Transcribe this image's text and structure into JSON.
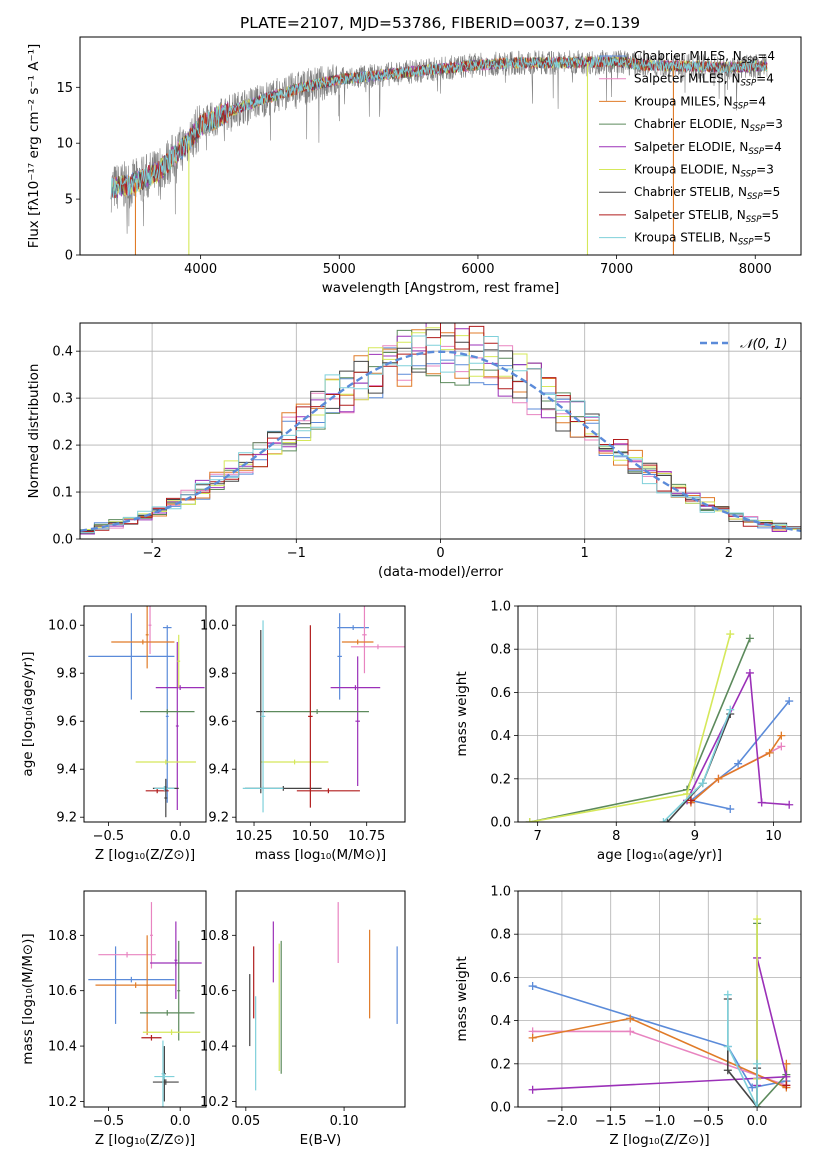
{
  "figure_title": "PLATE=2107, MJD=53786, FIBERID=0037, z=0.139",
  "colors": {
    "Chabrier MILES": "#5b8bd9",
    "Salpeter MILES": "#e884c0",
    "Kroupa MILES": "#e07b28",
    "Chabrier ELODIE": "#5c8a5c",
    "Salpeter ELODIE": "#9b30b8",
    "Kroupa ELODIE": "#d5e85a",
    "Chabrier STELIB": "#444444",
    "Salpeter STELIB": "#b01c1c",
    "Kroupa STELIB": "#7fd0da",
    "data": "#808080",
    "normal": "#5b8bd9"
  },
  "chart_data": [
    {
      "id": "spectrum",
      "type": "line",
      "xlabel": "wavelength [Angstrom, rest frame]",
      "ylabel": "Flux [fλ10⁻¹⁷ erg cm⁻² s⁻¹ A⁻¹]",
      "xlim": [
        3130,
        8330
      ],
      "ylim": [
        0,
        19.5
      ],
      "xticks": [
        4000,
        5000,
        6000,
        7000,
        8000
      ],
      "yticks": [
        0,
        5,
        10,
        15
      ],
      "x_range": [
        3355,
        8085
      ],
      "continuum_anchors": {
        "x": [
          3355,
          3500,
          3700,
          3900,
          4000,
          4200,
          4400,
          4700,
          5000,
          5300,
          5600,
          6000,
          6300,
          6600,
          7000,
          7200,
          7500,
          7800,
          8085
        ],
        "y": [
          6.0,
          6.3,
          7.5,
          10.0,
          11.6,
          12.8,
          13.7,
          14.9,
          15.7,
          16.1,
          16.5,
          17.0,
          17.2,
          17.2,
          17.3,
          17.0,
          16.9,
          16.8,
          16.9
        ]
      },
      "vertical_drops": [
        {
          "x": 3530,
          "series": "Kroupa MILES"
        },
        {
          "x": 3915,
          "series": "Kroupa ELODIE"
        },
        {
          "x": 6790,
          "series": "Kroupa ELODIE"
        },
        {
          "x": 7410,
          "series": "Kroupa MILES"
        }
      ],
      "legend": [
        {
          "name": "Chabrier MILES",
          "nssp": "4"
        },
        {
          "name": "Salpeter MILES",
          "nssp": "4"
        },
        {
          "name": "Kroupa MILES",
          "nssp": "4"
        },
        {
          "name": "Chabrier ELODIE",
          "nssp": "3"
        },
        {
          "name": "Salpeter ELODIE",
          "nssp": "4"
        },
        {
          "name": "Kroupa ELODIE",
          "nssp": "3"
        },
        {
          "name": "Chabrier STELIB",
          "nssp": "5"
        },
        {
          "name": "Salpeter STELIB",
          "nssp": "5"
        },
        {
          "name": "Kroupa STELIB",
          "nssp": "5"
        }
      ],
      "legend_position": "top-right"
    },
    {
      "id": "residuals",
      "type": "histogram",
      "xlabel": "(data-model)/error",
      "ylabel": "Normed distribution",
      "xlim": [
        -2.5,
        2.5
      ],
      "ylim": [
        0,
        0.46
      ],
      "xticks": [
        -2,
        -1,
        0,
        1,
        2
      ],
      "yticks": [
        0.0,
        0.1,
        0.2,
        0.3,
        0.4
      ],
      "bins": 50,
      "normal_curve": {
        "label": "𝒩(0, 1)",
        "mean": 0,
        "sigma": 1
      },
      "grid": true,
      "legend_position": "top-right"
    },
    {
      "id": "age_vs_Z",
      "type": "errorbar",
      "xlabel": "Z [log₁₀(Z/Z⊙)]",
      "ylabel": "age  [log₁₀(age/yr)]",
      "xlim": [
        -0.67,
        0.18
      ],
      "ylim": [
        9.18,
        10.08
      ],
      "xticks": [
        -0.5,
        0.0
      ],
      "yticks": [
        9.2,
        9.4,
        9.6,
        9.8,
        10.0
      ],
      "points": [
        {
          "series": "Chabrier MILES",
          "x": -0.34,
          "xerr": 0.3,
          "y": 9.87,
          "yerr": 0.18
        },
        {
          "series": "Chabrier MILES",
          "x": -0.09,
          "xerr": 0.03,
          "y": 9.99,
          "yerr": 0.01
        },
        {
          "series": "Chabrier MILES",
          "x": -0.09,
          "xerr": 0.01,
          "y": 9.62,
          "yerr": 0.36
        },
        {
          "series": "Salpeter MILES",
          "x": -0.21,
          "xerr": 0.01,
          "y": 10.0,
          "yerr": 0.12
        },
        {
          "series": "Kroupa MILES",
          "x": -0.23,
          "xerr": 0.01,
          "y": 9.96,
          "yerr": 0.14
        },
        {
          "series": "Kroupa MILES",
          "x": -0.26,
          "xerr": 0.22,
          "y": 9.93,
          "yerr": 0.01
        },
        {
          "series": "Salpeter ELODIE",
          "x": 0.0,
          "xerr": 0.17,
          "y": 9.74,
          "yerr": 0.01
        },
        {
          "series": "Salpeter ELODIE",
          "x": -0.02,
          "xerr": 0.01,
          "y": 9.58,
          "yerr": 0.35
        },
        {
          "series": "Chabrier ELODIE",
          "x": -0.09,
          "xerr": 0.19,
          "y": 9.64,
          "yerr": 0.01
        },
        {
          "series": "Kroupa ELODIE",
          "x": -0.1,
          "xerr": 0.21,
          "y": 9.43,
          "yerr": 0.01
        },
        {
          "series": "Kroupa ELODIE",
          "x": -0.01,
          "xerr": 0.01,
          "y": 9.85,
          "yerr": 0.11
        },
        {
          "series": "Chabrier STELIB",
          "x": -0.1,
          "xerr": 0.09,
          "y": 9.32,
          "yerr": 0.01
        },
        {
          "series": "Salpeter STELIB",
          "x": -0.16,
          "xerr": 0.08,
          "y": 9.31,
          "yerr": 0.01
        },
        {
          "series": "Kroupa STELIB",
          "x": -0.11,
          "xerr": 0.07,
          "y": 9.32,
          "yerr": 0.01
        },
        {
          "series": "Chabrier STELIB",
          "x": -0.1,
          "xerr": 0.01,
          "y": 9.28,
          "yerr": 0.08
        }
      ]
    },
    {
      "id": "age_vs_mass",
      "type": "errorbar",
      "xlabel": "mass [log₁₀(M/M⊙)]",
      "ylabel": "",
      "xlim": [
        10.17,
        10.92
      ],
      "ylim": [
        9.18,
        10.08
      ],
      "xticks": [
        10.25,
        10.5,
        10.75
      ],
      "yticks": [
        9.2,
        9.4,
        9.6,
        9.8,
        10.0
      ],
      "points": [
        {
          "series": "Chabrier MILES",
          "x": 10.69,
          "xerr": 0.07,
          "y": 9.99,
          "yerr": 0.01
        },
        {
          "series": "Chabrier MILES",
          "x": 10.63,
          "xerr": 0.01,
          "y": 9.87,
          "yerr": 0.18
        },
        {
          "series": "Salpeter MILES",
          "x": 10.8,
          "xerr": 0.12,
          "y": 9.91,
          "yerr": 0.01
        },
        {
          "series": "Salpeter MILES",
          "x": 10.74,
          "xerr": 0.01,
          "y": 9.96,
          "yerr": 0.16
        },
        {
          "series": "Kroupa MILES",
          "x": 10.71,
          "xerr": 0.07,
          "y": 9.93,
          "yerr": 0.01
        },
        {
          "series": "Salpeter ELODIE",
          "x": 10.7,
          "xerr": 0.11,
          "y": 9.74,
          "yerr": 0.01
        },
        {
          "series": "Salpeter ELODIE",
          "x": 10.71,
          "xerr": 0.01,
          "y": 9.6,
          "yerr": 0.27
        },
        {
          "series": "Chabrier ELODIE",
          "x": 10.53,
          "xerr": 0.23,
          "y": 9.64,
          "yerr": 0.01
        },
        {
          "series": "Kroupa ELODIE",
          "x": 10.43,
          "xerr": 0.15,
          "y": 9.43,
          "yerr": 0.01
        },
        {
          "series": "Chabrier STELIB",
          "x": 10.28,
          "xerr": 0.02,
          "y": 9.64,
          "yerr": 0.34
        },
        {
          "series": "Chabrier STELIB",
          "x": 10.38,
          "xerr": 0.17,
          "y": 9.32,
          "yerr": 0.01
        },
        {
          "series": "Salpeter STELIB",
          "x": 10.5,
          "xerr": 0.01,
          "y": 9.62,
          "yerr": 0.38
        },
        {
          "series": "Salpeter STELIB",
          "x": 10.58,
          "xerr": 0.14,
          "y": 9.31,
          "yerr": 0.01
        },
        {
          "series": "Kroupa STELIB",
          "x": 10.29,
          "xerr": 0.01,
          "y": 9.62,
          "yerr": 0.4
        },
        {
          "series": "Kroupa STELIB",
          "x": 10.29,
          "xerr": 0.09,
          "y": 9.32,
          "yerr": 0.01
        }
      ]
    },
    {
      "id": "massweight_vs_age",
      "type": "line",
      "xlabel": "age  [log₁₀(age/yr)]",
      "ylabel": "mass weight",
      "xlim": [
        6.75,
        10.35
      ],
      "ylim": [
        0,
        1.0
      ],
      "xticks": [
        7,
        8,
        9,
        10
      ],
      "yticks": [
        0.0,
        0.2,
        0.4,
        0.6,
        0.8,
        1.0
      ],
      "grid": true,
      "series": [
        {
          "name": "Chabrier MILES",
          "x": [
            9.45,
            8.95,
            9.55,
            10.2
          ],
          "y": [
            0.06,
            0.1,
            0.27,
            0.56
          ]
        },
        {
          "name": "Salpeter MILES",
          "x": [
            8.95,
            9.3,
            10.1
          ],
          "y": [
            0.09,
            0.2,
            0.35
          ]
        },
        {
          "name": "Kroupa MILES",
          "x": [
            8.95,
            9.3,
            9.95,
            10.1
          ],
          "y": [
            0.09,
            0.2,
            0.32,
            0.4
          ]
        },
        {
          "name": "Chabrier ELODIE",
          "x": [
            6.9,
            8.9,
            9.7
          ],
          "y": [
            0.0,
            0.15,
            0.85
          ]
        },
        {
          "name": "Salpeter ELODIE",
          "x": [
            8.9,
            9.7,
            9.85,
            10.2
          ],
          "y": [
            0.1,
            0.69,
            0.09,
            0.08
          ]
        },
        {
          "name": "Kroupa ELODIE",
          "x": [
            6.9,
            8.9,
            9.45
          ],
          "y": [
            0.0,
            0.13,
            0.87
          ]
        },
        {
          "name": "Chabrier STELIB",
          "x": [
            8.65,
            9.1,
            9.45
          ],
          "y": [
            0.0,
            0.18,
            0.5
          ]
        },
        {
          "name": "Salpeter STELIB",
          "x": [
            8.95
          ],
          "y": [
            0.1
          ]
        },
        {
          "name": "Kroupa STELIB",
          "x": [
            8.6,
            9.1,
            9.45
          ],
          "y": [
            0.0,
            0.18,
            0.52
          ]
        }
      ]
    },
    {
      "id": "mass_vs_Z",
      "type": "errorbar",
      "xlabel": "Z [log₁₀(Z/Z⊙)]",
      "ylabel": "mass [log₁₀(M/M⊙)]",
      "xlim": [
        -0.67,
        0.18
      ],
      "ylim": [
        10.18,
        10.96
      ],
      "xticks": [
        -0.5,
        0.0
      ],
      "yticks": [
        10.2,
        10.4,
        10.6,
        10.8
      ],
      "points": [
        {
          "series": "Chabrier MILES",
          "x": -0.34,
          "xerr": 0.3,
          "y": 10.64,
          "yerr": 0.01
        },
        {
          "series": "Chabrier MILES",
          "x": -0.45,
          "xerr": 0.01,
          "y": 10.62,
          "yerr": 0.14
        },
        {
          "series": "Salpeter MILES",
          "x": -0.37,
          "xerr": 0.2,
          "y": 10.73,
          "yerr": 0.01
        },
        {
          "series": "Salpeter MILES",
          "x": -0.2,
          "xerr": 0.01,
          "y": 10.8,
          "yerr": 0.12
        },
        {
          "series": "Kroupa MILES",
          "x": -0.31,
          "xerr": 0.28,
          "y": 10.62,
          "yerr": 0.01
        },
        {
          "series": "Kroupa MILES",
          "x": -0.23,
          "xerr": 0.01,
          "y": 10.62,
          "yerr": 0.18
        },
        {
          "series": "Salpeter ELODIE",
          "x": -0.03,
          "xerr": 0.18,
          "y": 10.7,
          "yerr": 0.01
        },
        {
          "series": "Salpeter ELODIE",
          "x": -0.03,
          "xerr": 0.01,
          "y": 10.71,
          "yerr": 0.14
        },
        {
          "series": "Chabrier ELODIE",
          "x": -0.09,
          "xerr": 0.19,
          "y": 10.52,
          "yerr": 0.01
        },
        {
          "series": "Chabrier ELODIE",
          "x": -0.01,
          "xerr": 0.01,
          "y": 10.6,
          "yerr": 0.18
        },
        {
          "series": "Kroupa ELODIE",
          "x": -0.06,
          "xerr": 0.2,
          "y": 10.45,
          "yerr": 0.01
        },
        {
          "series": "Chabrier STELIB",
          "x": -0.1,
          "xerr": 0.09,
          "y": 10.27,
          "yerr": 0.01
        },
        {
          "series": "Chabrier STELIB",
          "x": -0.11,
          "xerr": 0.01,
          "y": 10.3,
          "yerr": 0.1
        },
        {
          "series": "Salpeter STELIB",
          "x": -0.2,
          "xerr": 0.07,
          "y": 10.43,
          "yerr": 0.01
        },
        {
          "series": "Kroupa STELIB",
          "x": -0.11,
          "xerr": 0.07,
          "y": 10.29,
          "yerr": 0.01
        },
        {
          "series": "Kroupa STELIB",
          "x": -0.12,
          "xerr": 0.01,
          "y": 10.3,
          "yerr": 0.12
        }
      ]
    },
    {
      "id": "mass_vs_ebv",
      "type": "errorbar",
      "xlabel": "E(B-V)",
      "ylabel": "",
      "xlim": [
        0.045,
        0.131
      ],
      "ylim": [
        10.18,
        10.96
      ],
      "xticks": [
        0.05,
        0.1
      ],
      "yticks": [
        10.2,
        10.4,
        10.6,
        10.8
      ],
      "points": [
        {
          "series": "Chabrier STELIB",
          "x": 0.052,
          "y": 10.53,
          "yerr": 0.13
        },
        {
          "series": "Salpeter STELIB",
          "x": 0.054,
          "y": 10.63,
          "yerr": 0.13
        },
        {
          "series": "Kroupa STELIB",
          "x": 0.055,
          "y": 10.41,
          "yerr": 0.17
        },
        {
          "series": "Salpeter ELODIE",
          "x": 0.064,
          "y": 10.74,
          "yerr": 0.11
        },
        {
          "series": "Chabrier ELODIE",
          "x": 0.068,
          "y": 10.54,
          "yerr": 0.24
        },
        {
          "series": "Kroupa ELODIE",
          "x": 0.067,
          "y": 10.54,
          "yerr": 0.23
        },
        {
          "series": "Salpeter MILES",
          "x": 0.097,
          "y": 10.81,
          "yerr": 0.11
        },
        {
          "series": "Kroupa MILES",
          "x": 0.113,
          "y": 10.66,
          "yerr": 0.16
        },
        {
          "series": "Chabrier MILES",
          "x": 0.127,
          "y": 10.62,
          "yerr": 0.14
        }
      ]
    },
    {
      "id": "massweight_vs_Z",
      "type": "line",
      "xlabel": "Z [log₁₀(Z/Z⊙)]",
      "ylabel": "mass weight",
      "xlim": [
        -2.45,
        0.45
      ],
      "ylim": [
        0,
        1.0
      ],
      "xticks": [
        -2.0,
        -1.5,
        -1.0,
        -0.5,
        0.0
      ],
      "yticks": [
        0.0,
        0.2,
        0.4,
        0.6,
        0.8,
        1.0
      ],
      "grid": true,
      "series": [
        {
          "name": "Chabrier MILES",
          "x": [
            -2.3,
            -0.3,
            -0.05,
            0.3
          ],
          "y": [
            0.56,
            0.28,
            0.09,
            0.12
          ]
        },
        {
          "name": "Salpeter MILES",
          "x": [
            -2.3,
            -1.3,
            0.3
          ],
          "y": [
            0.35,
            0.35,
            0.1
          ]
        },
        {
          "name": "Kroupa MILES",
          "x": [
            -2.3,
            -1.3,
            0.3,
            0.3
          ],
          "y": [
            0.32,
            0.41,
            0.09,
            0.2
          ]
        },
        {
          "name": "Chabrier ELODIE",
          "x": [
            0.0,
            0.0,
            0.3
          ],
          "y": [
            0.85,
            0.0,
            0.15
          ]
        },
        {
          "name": "Salpeter ELODIE",
          "x": [
            -2.3,
            0.3,
            0.0,
            0.0
          ],
          "y": [
            0.08,
            0.14,
            0.69,
            0.1
          ]
        },
        {
          "name": "Kroupa ELODIE",
          "x": [
            0.0,
            0.0,
            0.0
          ],
          "y": [
            0.87,
            0.0,
            0.13
          ]
        },
        {
          "name": "Chabrier STELIB",
          "x": [
            -0.3,
            -0.3,
            0.0,
            0.0
          ],
          "y": [
            0.5,
            0.17,
            0.0,
            0.18
          ]
        },
        {
          "name": "Salpeter STELIB",
          "x": [
            0.3
          ],
          "y": [
            0.1
          ]
        },
        {
          "name": "Kroupa STELIB",
          "x": [
            -0.3,
            -0.3,
            0.0,
            0.0
          ],
          "y": [
            0.52,
            0.28,
            0.0,
            0.2
          ]
        }
      ]
    }
  ]
}
